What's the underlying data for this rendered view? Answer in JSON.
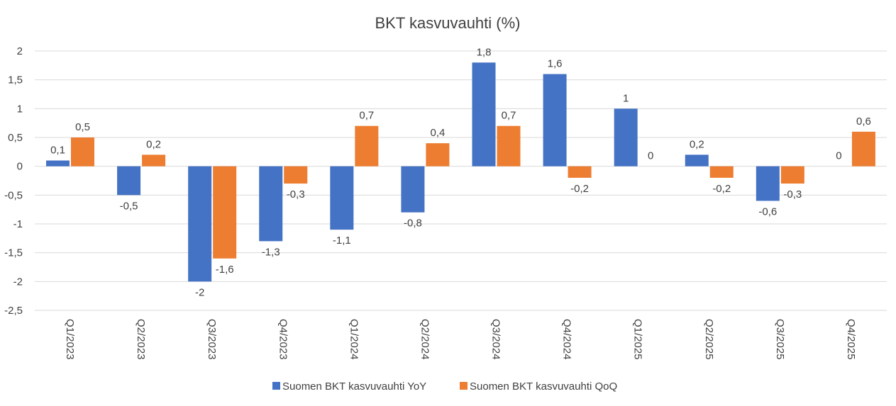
{
  "chart_data": {
    "type": "bar",
    "title": "BKT kasvuvauhti (%)",
    "categories": [
      "Q1/2023",
      "Q2/2023",
      "Q3/2023",
      "Q4/2023",
      "Q1/2024",
      "Q2/2024",
      "Q3/2024",
      "Q4/2024",
      "Q1/2025",
      "Q2/2025",
      "Q3/2025",
      "Q4/2025"
    ],
    "series": [
      {
        "name": "Suomen BKT kasvuvauhti YoY",
        "color": "#4472C4",
        "values": [
          0.1,
          -0.5,
          -2,
          -1.3,
          -1.1,
          -0.8,
          1.8,
          1.6,
          1,
          0.2,
          -0.6,
          0
        ]
      },
      {
        "name": "Suomen BKT kasvuvauhti QoQ",
        "color": "#ED7D31",
        "values": [
          0.5,
          0.2,
          -1.6,
          -0.3,
          0.7,
          0.4,
          0.7,
          -0.2,
          0,
          -0.2,
          -0.3,
          0.6
        ]
      }
    ],
    "ylim": [
      -2.5,
      2
    ],
    "yticks": [
      "2",
      "1,5",
      "1",
      "0,5",
      "0",
      "-0,5",
      "-1",
      "-1,5",
      "-2",
      "-2,5"
    ],
    "decimal_separator": ",",
    "grid": true,
    "legend": "bottom"
  }
}
